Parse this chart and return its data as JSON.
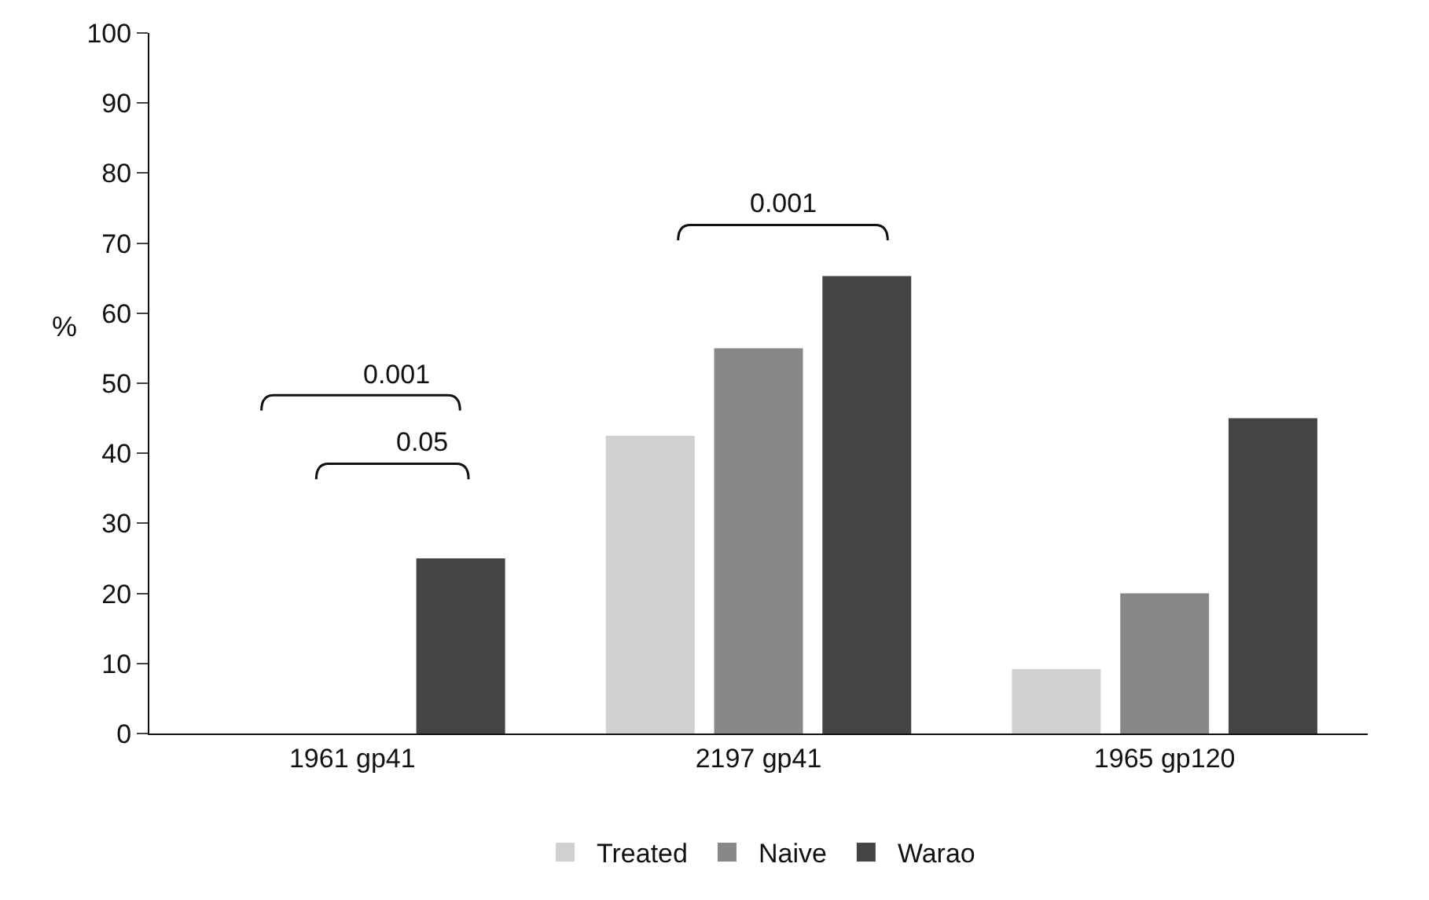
{
  "chart_data": {
    "type": "bar",
    "ylabel": "%",
    "categories": [
      "1961 gp41",
      "2197 gp41",
      "1965 gp120"
    ],
    "series": [
      {
        "name": "Treated",
        "color": "#d0d0d0",
        "values": [
          0,
          42.5,
          9.2
        ]
      },
      {
        "name": "Naive",
        "color": "#888888",
        "values": [
          0,
          55,
          20
        ]
      },
      {
        "name": "Warao",
        "color": "#444444",
        "values": [
          25,
          65.3,
          45
        ]
      }
    ],
    "ylim": [
      0,
      100
    ],
    "yticks": [
      0,
      10,
      20,
      30,
      40,
      50,
      60,
      70,
      80,
      90,
      100
    ],
    "grid": false,
    "legend": "bottom",
    "annotations": [
      "0.001",
      "0.05",
      "0.001"
    ]
  }
}
